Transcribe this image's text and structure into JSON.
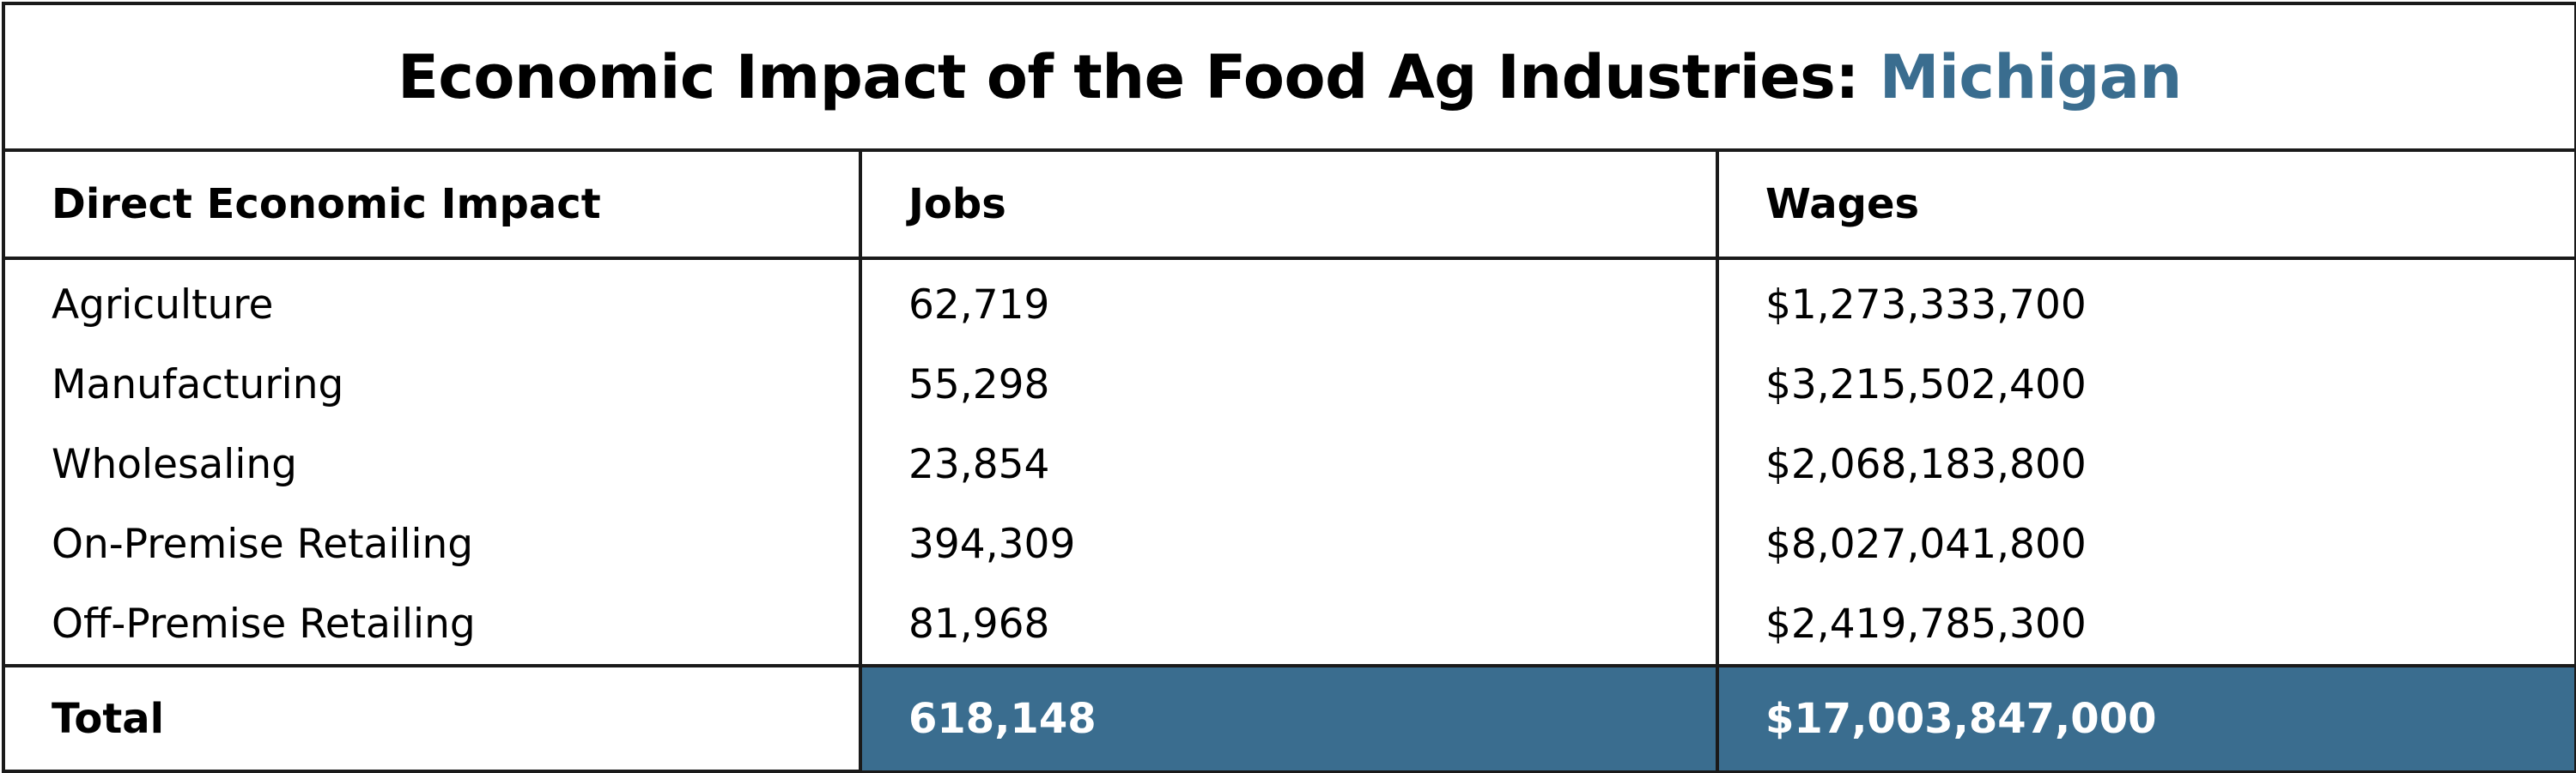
{
  "title": {
    "prefix": "Economic Impact of the Food Ag Industries:",
    "state": "Michigan"
  },
  "colors": {
    "accent": "#3a6d8f",
    "border": "#1a1a1a",
    "highlight_text": "#ffffff"
  },
  "table": {
    "headers": [
      "Direct Economic Impact",
      "Jobs",
      "Wages"
    ],
    "rows": [
      [
        "Agriculture",
        "62,719",
        "$1,273,333,700"
      ],
      [
        "Manufacturing",
        "55,298",
        "$3,215,502,400"
      ],
      [
        "Wholesaling",
        "23,854",
        "$2,068,183,800"
      ],
      [
        "On-Premise Retailing",
        "394,309",
        "$8,027,041,800"
      ],
      [
        "Off-Premise Retailing",
        "81,968",
        "$2,419,785,300"
      ]
    ],
    "total": [
      "Total",
      "618,148",
      "$17,003,847,000"
    ]
  }
}
